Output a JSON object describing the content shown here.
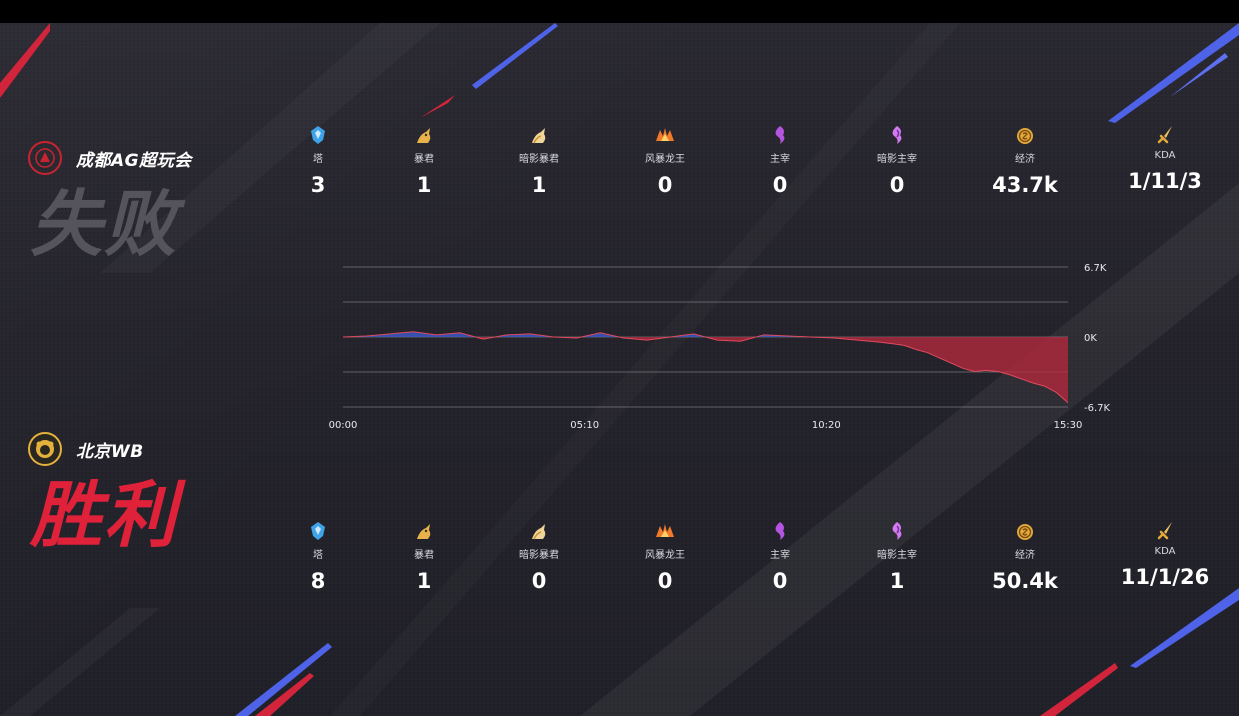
{
  "teams": {
    "loser": {
      "name": "成都AG超玩会",
      "result": "失败",
      "color": "#c9242f"
    },
    "winner": {
      "name": "北京WB",
      "result": "胜利",
      "color": "#e0213a"
    }
  },
  "stat_labels": [
    "塔",
    "暴君",
    "暗影暴君",
    "风暴龙王",
    "主宰",
    "暗影主宰",
    "经济",
    "KDA"
  ],
  "stat_icons": [
    "tower-icon",
    "tyrant-icon",
    "shadow-tyrant-icon",
    "storm-dragon-icon",
    "overlord-icon",
    "shadow-overlord-icon",
    "gold-icon",
    "kda-sword-icon"
  ],
  "loser_stats": [
    "3",
    "1",
    "1",
    "0",
    "0",
    "0",
    "43.7k",
    "1/11/3"
  ],
  "winner_stats": [
    "8",
    "1",
    "0",
    "0",
    "0",
    "1",
    "50.4k",
    "11/1/26"
  ],
  "chart_data": {
    "type": "area",
    "y_tick_labels": [
      "6.7K",
      "0K",
      "-6.7K"
    ],
    "ylim": [
      -6.7,
      6.7
    ],
    "x_tick_labels": [
      "00:00",
      "05:10",
      "10:20",
      "15:30"
    ],
    "xlim": [
      0,
      15.5
    ],
    "grid": true,
    "positive_color": "#3b57c4",
    "negative_color": "#b9283d",
    "series": [
      {
        "x": [
          0,
          0.5,
          1,
          1.5,
          2,
          2.5,
          3,
          3.5,
          4,
          4.5,
          5,
          5.5,
          6,
          6.5,
          7,
          7.5,
          8,
          8.5,
          9,
          9.5,
          10,
          10.5,
          11,
          11.5,
          12,
          12.25,
          12.5,
          12.75,
          13,
          13.25,
          13.5,
          13.75,
          14,
          14.25,
          14.5,
          14.75,
          15,
          15.25,
          15.5
        ],
        "values": [
          0,
          0.1,
          0.3,
          0.5,
          0.2,
          0.4,
          -0.2,
          0.2,
          0.3,
          0,
          -0.1,
          0.4,
          -0.1,
          -0.3,
          0,
          0.3,
          -0.3,
          -0.4,
          0.2,
          0.1,
          0,
          -0.1,
          -0.3,
          -0.5,
          -0.8,
          -1.2,
          -1.5,
          -2.0,
          -2.5,
          -3.0,
          -3.3,
          -3.2,
          -3.3,
          -3.6,
          -4.0,
          -4.4,
          -4.7,
          -5.3,
          -6.3
        ]
      }
    ]
  }
}
